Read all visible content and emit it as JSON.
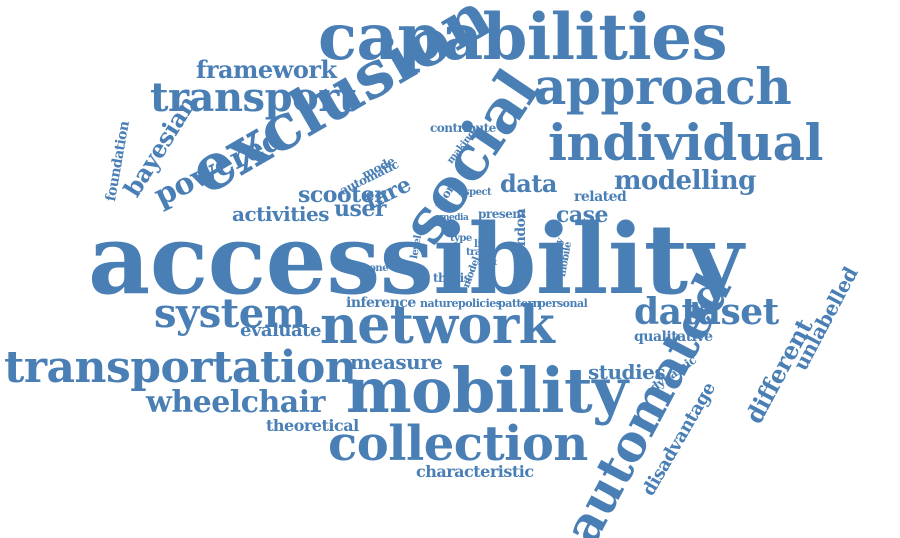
{
  "colors": {
    "word": "#4a7fb5",
    "background": "#ffffff"
  },
  "words": [
    "capabilities",
    "approach",
    "framework",
    "transport",
    "exclusion",
    "social",
    "individual",
    "powered",
    "bayesian",
    "foundation",
    "contribute",
    "automatic",
    "mode",
    "making",
    "fare",
    "scooter",
    "data",
    "related",
    "modelling",
    "activities",
    "user",
    "aspect",
    "more",
    "present",
    "media",
    "case",
    "accessibility",
    "level",
    "type",
    "link",
    "travel",
    "model",
    "limit",
    "london",
    "activity",
    "mobile",
    "phone",
    "thesis",
    "system",
    "inference",
    "nature",
    "policies",
    "pattern",
    "personal",
    "dataset",
    "network",
    "evaluate",
    "qualitative",
    "unlabelled",
    "transportation",
    "measure",
    "studies",
    "dynamic",
    "different",
    "wheelchair",
    "mobility",
    "theoretical",
    "collection",
    "automated",
    "disadvantage",
    "characteristic"
  ]
}
